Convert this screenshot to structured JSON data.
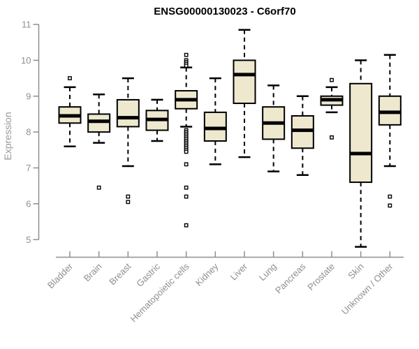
{
  "chart_data": {
    "type": "box",
    "title": "ENSG00000130023 - C6orf70",
    "ylabel": "Expression",
    "xlabel": "",
    "ylim": [
      5,
      11
    ],
    "yticks": [
      5,
      6,
      7,
      8,
      9,
      10,
      11
    ],
    "grid": false,
    "legend": "none",
    "categories": [
      "Bladder",
      "Brain",
      "Breast",
      "Gastric",
      "Hematopoietic cells",
      "Kidney",
      "Liver",
      "Lung",
      "Pancreas",
      "Prostate",
      "Skin",
      "Unknown / Other"
    ],
    "series": [
      {
        "category": "Bladder",
        "whisker_low": 7.6,
        "q1": 8.25,
        "median": 8.45,
        "q3": 8.7,
        "whisker_high": 9.25,
        "outliers": [
          9.5
        ]
      },
      {
        "category": "Brain",
        "whisker_low": 7.7,
        "q1": 8.0,
        "median": 8.3,
        "q3": 8.5,
        "whisker_high": 9.05,
        "outliers": [
          6.45
        ]
      },
      {
        "category": "Breast",
        "whisker_low": 7.05,
        "q1": 8.15,
        "median": 8.4,
        "q3": 8.9,
        "whisker_high": 9.5,
        "outliers": [
          6.2,
          6.05
        ]
      },
      {
        "category": "Gastric",
        "whisker_low": 7.75,
        "q1": 8.05,
        "median": 8.35,
        "q3": 8.6,
        "whisker_high": 8.9,
        "outliers": []
      },
      {
        "category": "Hematopoietic cells",
        "whisker_low": 8.15,
        "q1": 8.65,
        "median": 8.9,
        "q3": 9.15,
        "whisker_high": 9.8,
        "outliers": [
          10.15,
          10.0,
          9.95,
          9.9,
          9.85,
          8.05,
          8.0,
          7.95,
          7.9,
          7.85,
          7.8,
          7.75,
          7.7,
          7.65,
          7.6,
          7.55,
          7.5,
          7.45,
          7.1,
          6.45,
          6.2,
          5.4
        ]
      },
      {
        "category": "Kidney",
        "whisker_low": 7.1,
        "q1": 7.75,
        "median": 8.1,
        "q3": 8.55,
        "whisker_high": 9.5,
        "outliers": []
      },
      {
        "category": "Liver",
        "whisker_low": 7.3,
        "q1": 8.8,
        "median": 9.6,
        "q3": 10.0,
        "whisker_high": 10.85,
        "outliers": []
      },
      {
        "category": "Lung",
        "whisker_low": 6.9,
        "q1": 7.8,
        "median": 8.25,
        "q3": 8.7,
        "whisker_high": 9.3,
        "outliers": []
      },
      {
        "category": "Pancreas",
        "whisker_low": 6.8,
        "q1": 7.55,
        "median": 8.05,
        "q3": 8.45,
        "whisker_high": 9.0,
        "outliers": []
      },
      {
        "category": "Prostate",
        "whisker_low": 8.55,
        "q1": 8.75,
        "median": 8.9,
        "q3": 9.0,
        "whisker_high": 9.25,
        "outliers": [
          9.45,
          7.85
        ]
      },
      {
        "category": "Skin",
        "whisker_low": 4.8,
        "q1": 6.6,
        "median": 7.4,
        "q3": 9.35,
        "whisker_high": 10.0,
        "outliers": []
      },
      {
        "category": "Unknown / Other",
        "whisker_low": 7.05,
        "q1": 8.2,
        "median": 8.55,
        "q3": 9.0,
        "whisker_high": 10.15,
        "outliers": [
          6.2,
          5.95
        ]
      }
    ],
    "colors": {
      "box_fill": "#EEE8CE",
      "box_stroke": "#000000",
      "median": "#000000",
      "whisker": "#000000",
      "axis": "#8f8f8f",
      "title": "#000000",
      "background": "#FFFFFF"
    }
  }
}
